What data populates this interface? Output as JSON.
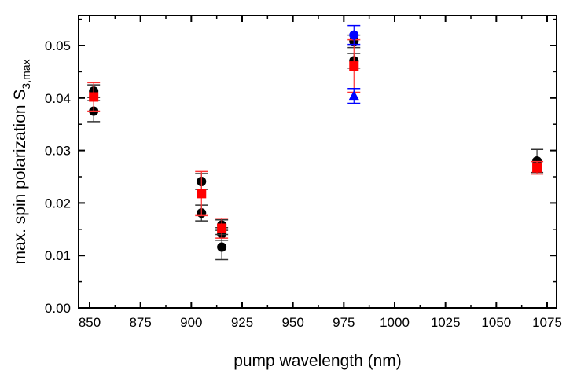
{
  "chart_data": {
    "type": "scatter",
    "title": "",
    "xlabel": "pump wavelength (nm)",
    "ylabel": "max. spin polarization S",
    "ylabel_sub": "3,max",
    "xlim": [
      845,
      1080
    ],
    "ylim": [
      0,
      0.055
    ],
    "xticks": [
      850,
      875,
      900,
      925,
      950,
      975,
      1000,
      1025,
      1050,
      1075
    ],
    "yticks": [
      0.0,
      0.01,
      0.02,
      0.03,
      0.04,
      0.05
    ],
    "ytick_labels": [
      "0.00",
      "0.01",
      "0.02",
      "0.03",
      "0.04",
      "0.05"
    ],
    "grid": false,
    "series": [
      {
        "name": "black circles",
        "color": "#000000",
        "marker": "circle",
        "points": [
          {
            "x": 852,
            "y": 0.0413,
            "err": 0.0012
          },
          {
            "x": 852,
            "y": 0.0375,
            "err": 0.002
          },
          {
            "x": 905,
            "y": 0.0241,
            "err": 0.0015
          },
          {
            "x": 905,
            "y": 0.0181,
            "err": 0.0015
          },
          {
            "x": 915,
            "y": 0.0158,
            "err": 0.001
          },
          {
            "x": 915,
            "y": 0.0141,
            "err": 0.0012
          },
          {
            "x": 915,
            "y": 0.0116,
            "err": 0.0024
          },
          {
            "x": 980,
            "y": 0.0508,
            "err": 0.0012
          },
          {
            "x": 980,
            "y": 0.0471,
            "err": 0.0014
          },
          {
            "x": 1070,
            "y": 0.028,
            "err": 0.0022
          }
        ]
      },
      {
        "name": "red squares",
        "color": "#ff0000",
        "marker": "square",
        "points": [
          {
            "x": 852,
            "y": 0.0402,
            "err": 0.0027
          },
          {
            "x": 905,
            "y": 0.0218,
            "err": 0.0042
          },
          {
            "x": 915,
            "y": 0.0152,
            "err": 0.0019
          },
          {
            "x": 980,
            "y": 0.0461,
            "err": 0.005
          },
          {
            "x": 1070,
            "y": 0.0267,
            "err": 0.0012
          }
        ]
      },
      {
        "name": "blue circles",
        "color": "#0000ff",
        "marker": "circle",
        "points": [
          {
            "x": 980,
            "y": 0.052,
            "err": 0.0018
          }
        ]
      },
      {
        "name": "blue triangles",
        "color": "#0000ff",
        "marker": "triangle",
        "points": [
          {
            "x": 980,
            "y": 0.0404,
            "err": 0.0014
          }
        ]
      }
    ]
  }
}
